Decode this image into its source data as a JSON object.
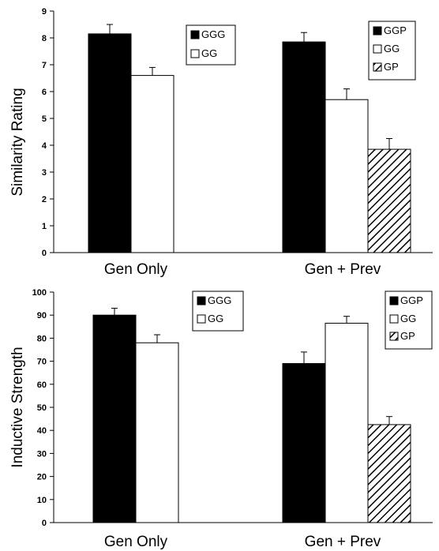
{
  "colors": {
    "black": "#000000",
    "white": "#ffffff",
    "hatch": "#000000"
  },
  "chart_data": [
    {
      "type": "bar",
      "ylabel": "Similarity Rating",
      "ylim": [
        0,
        9
      ],
      "yticks": [
        0,
        1,
        2,
        3,
        4,
        5,
        6,
        7,
        8,
        9
      ],
      "groups": [
        {
          "label": "Gen Only",
          "legend": [
            "GGG",
            "GG"
          ],
          "bars": [
            {
              "series": "GGG",
              "value": 8.15,
              "error": 0.35,
              "fill": "black"
            },
            {
              "series": "GG",
              "value": 6.6,
              "error": 0.3,
              "fill": "white"
            }
          ]
        },
        {
          "label": "Gen + Prev",
          "legend": [
            "GGP",
            "GG",
            "GP"
          ],
          "bars": [
            {
              "series": "GGP",
              "value": 7.85,
              "error": 0.35,
              "fill": "black"
            },
            {
              "series": "GG",
              "value": 5.7,
              "error": 0.4,
              "fill": "white"
            },
            {
              "series": "GP",
              "value": 3.85,
              "error": 0.4,
              "fill": "hatch"
            }
          ]
        }
      ]
    },
    {
      "type": "bar",
      "ylabel": "Inductive Strength",
      "ylim": [
        0,
        100
      ],
      "yticks": [
        0,
        10,
        20,
        30,
        40,
        50,
        60,
        70,
        80,
        90,
        100
      ],
      "groups": [
        {
          "label": "Gen Only",
          "legend": [
            "GGG",
            "GG"
          ],
          "bars": [
            {
              "series": "GGG",
              "value": 90,
              "error": 3,
              "fill": "black"
            },
            {
              "series": "GG",
              "value": 78,
              "error": 3.5,
              "fill": "white"
            }
          ]
        },
        {
          "label": "Gen + Prev",
          "legend": [
            "GGP",
            "GG",
            "GP"
          ],
          "bars": [
            {
              "series": "GGP",
              "value": 69,
              "error": 5,
              "fill": "black"
            },
            {
              "series": "GG",
              "value": 86.5,
              "error": 3,
              "fill": "white"
            },
            {
              "series": "GP",
              "value": 42.5,
              "error": 3.5,
              "fill": "hatch"
            }
          ]
        }
      ]
    }
  ]
}
